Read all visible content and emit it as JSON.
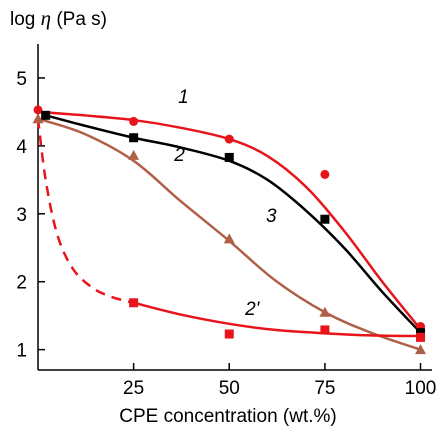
{
  "chart_data": {
    "type": "line",
    "xlabel": "CPE concentration (wt.%)",
    "ylabel": {
      "prefix": "log ",
      "symbol": "η",
      "suffix": " (Pa s)"
    },
    "xlim": [
      0,
      103
    ],
    "ylim": [
      0.7,
      5.5
    ],
    "x_ticks": [
      25,
      50,
      75,
      100
    ],
    "y_ticks": [
      1,
      2,
      3,
      4,
      5
    ],
    "grid": false,
    "series": [
      {
        "name": "1",
        "color": "#e8141b",
        "marker": "circle",
        "points": [
          [
            0,
            4.53
          ],
          [
            25,
            4.36
          ],
          [
            50,
            4.1
          ],
          [
            75,
            3.58
          ],
          [
            100,
            1.34
          ]
        ],
        "curve": [
          [
            0,
            4.5
          ],
          [
            12,
            4.45
          ],
          [
            25,
            4.38
          ],
          [
            37,
            4.27
          ],
          [
            50,
            4.1
          ],
          [
            60,
            3.85
          ],
          [
            70,
            3.4
          ],
          [
            80,
            2.75
          ],
          [
            90,
            2.0
          ],
          [
            100,
            1.3
          ]
        ],
        "label": "1",
        "label_at": [
          38,
          4.63
        ]
      },
      {
        "name": "2",
        "color": "#000000",
        "marker": "square",
        "points": [
          [
            2,
            4.45
          ],
          [
            25,
            4.12
          ],
          [
            50,
            3.83
          ],
          [
            75,
            2.92
          ],
          [
            100,
            1.25
          ]
        ],
        "curve": [
          [
            2,
            4.45
          ],
          [
            12,
            4.3
          ],
          [
            25,
            4.12
          ],
          [
            37,
            3.98
          ],
          [
            50,
            3.78
          ],
          [
            60,
            3.5
          ],
          [
            70,
            3.05
          ],
          [
            80,
            2.5
          ],
          [
            90,
            1.85
          ],
          [
            100,
            1.25
          ]
        ],
        "label": "2",
        "label_at": [
          37,
          3.78
        ]
      },
      {
        "name": "3",
        "color": "#b06048",
        "marker": "triangle",
        "points": [
          [
            0,
            4.4
          ],
          [
            25,
            3.86
          ],
          [
            50,
            2.63
          ],
          [
            75,
            1.55
          ],
          [
            100,
            1.0
          ]
        ],
        "curve": [
          [
            0,
            4.4
          ],
          [
            12,
            4.18
          ],
          [
            25,
            3.78
          ],
          [
            37,
            3.2
          ],
          [
            50,
            2.6
          ],
          [
            62,
            2.02
          ],
          [
            75,
            1.55
          ],
          [
            87,
            1.25
          ],
          [
            100,
            1.0
          ]
        ],
        "label": "3",
        "label_at": [
          61,
          2.88
        ]
      },
      {
        "name": "2'",
        "color": "#e8141b",
        "marker": "square",
        "points": [
          [
            25,
            1.69
          ],
          [
            50,
            1.23
          ],
          [
            75,
            1.29
          ],
          [
            100,
            1.18
          ]
        ],
        "curve_dashed": [
          [
            0,
            4.4
          ],
          [
            2,
            3.5
          ],
          [
            5,
            2.7
          ],
          [
            9,
            2.2
          ],
          [
            14,
            1.92
          ],
          [
            19,
            1.78
          ],
          [
            25,
            1.69
          ]
        ],
        "curve": [
          [
            25,
            1.69
          ],
          [
            37,
            1.52
          ],
          [
            50,
            1.38
          ],
          [
            62,
            1.29
          ],
          [
            75,
            1.24
          ],
          [
            87,
            1.21
          ],
          [
            100,
            1.2
          ]
        ],
        "label": "2'",
        "label_at": [
          56,
          1.51
        ]
      }
    ]
  }
}
